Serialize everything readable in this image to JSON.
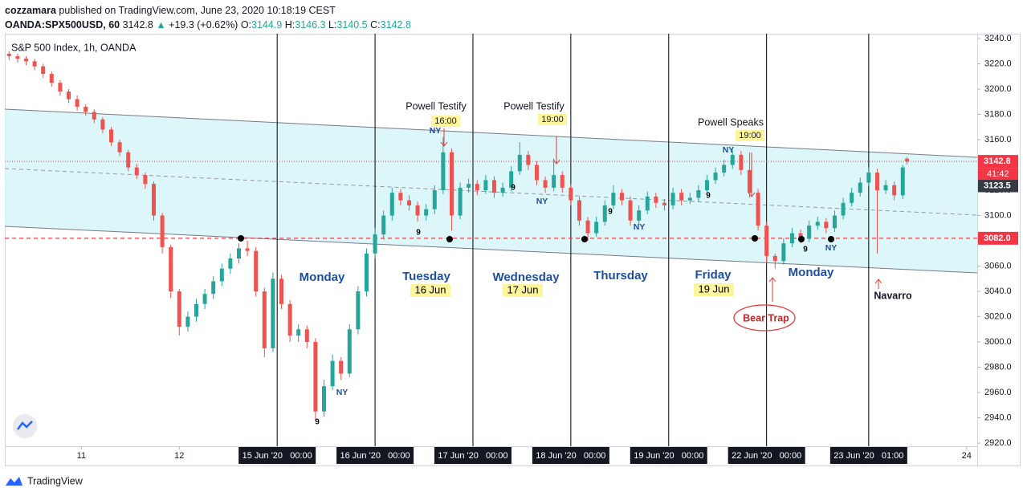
{
  "header": {
    "author": "cozzamara",
    "published": "published on TradingView.com, June 23, 2020 10:18:19 CEST",
    "symbol": "OANDA:SPX500USD, 60",
    "last": "3142.8",
    "change": "+19.3 (+0.62%)",
    "ohlc": [
      {
        "label": "O:",
        "value": "3144.9"
      },
      {
        "label": "H:",
        "value": "3146.3"
      },
      {
        "label": "L:",
        "value": "3140.5"
      },
      {
        "label": "C:",
        "value": "3142.8"
      }
    ]
  },
  "footer": {
    "brand": "TradingView"
  },
  "chart_data": {
    "type": "candlestick",
    "title": "S&P 500 Index, 1h, OANDA",
    "up_color": "#26a69a",
    "down_color": "#ef5350",
    "xlim": [
      -1,
      227.5
    ],
    "ylim": [
      2917.5,
      3243.8
    ],
    "xticks": [
      {
        "value": 17,
        "label": "11"
      },
      {
        "value": 40,
        "label": "12"
      },
      {
        "value": 63,
        "label": "15 Jun '20   00:00"
      },
      {
        "value": 86,
        "label": "16 Jun '20   00:00"
      },
      {
        "value": 109,
        "label": "17 Jun '20   00:00"
      },
      {
        "value": 132,
        "label": "18 Jun '20   00:00"
      },
      {
        "value": 155,
        "label": "19 Jun '20   00:00"
      },
      {
        "value": 178,
        "label": "22 Jun '20   00:00"
      },
      {
        "value": 202,
        "label": "23 Jun '20   01:00"
      },
      {
        "value": 225,
        "label": "24"
      }
    ],
    "yticks": [
      {
        "value": 2920,
        "label": "2920.0"
      },
      {
        "value": 2940,
        "label": "2940.0"
      },
      {
        "value": 2960,
        "label": "2960.0"
      },
      {
        "value": 2980,
        "label": "2980.0"
      },
      {
        "value": 3000,
        "label": "3000.0"
      },
      {
        "value": 3020,
        "label": "3020.0"
      },
      {
        "value": 3040,
        "label": "3040.0"
      },
      {
        "value": 3060,
        "label": "3060.0"
      },
      {
        "value": 3080,
        "label": "3080.0"
      },
      {
        "value": 3100,
        "label": "3100.0"
      },
      {
        "value": 3120,
        "label": "3120.0"
      },
      {
        "value": 3140,
        "label": "3140.0"
      },
      {
        "value": 3160,
        "label": "3160.0"
      },
      {
        "value": 3180,
        "label": "3180.0"
      },
      {
        "value": 3200,
        "label": "3200.0"
      },
      {
        "value": 3220,
        "label": "3220.0"
      },
      {
        "value": 3240,
        "label": "3240.0"
      }
    ],
    "price_lines": [
      {
        "value": 3142.8,
        "label": "3142.8",
        "color": "#f23645",
        "style": "dotted"
      },
      {
        "value": 3123.5,
        "label": "3123.5",
        "color": "#363a45",
        "style": "none"
      },
      {
        "value": 3082,
        "label": "3082.0",
        "color": "#f23645",
        "style": "dashed"
      }
    ],
    "countdown": "41:42",
    "x": [
      0,
      2,
      4,
      6,
      8,
      10,
      12,
      14,
      16,
      18,
      20,
      22,
      24,
      26,
      28,
      30,
      32,
      34,
      36,
      38,
      40,
      42,
      44,
      46,
      48,
      50,
      52,
      54,
      56,
      58,
      60,
      62,
      64,
      66,
      68,
      70,
      72,
      74,
      76,
      78,
      80,
      82,
      84,
      86,
      88,
      90,
      92,
      94,
      96,
      98,
      100,
      102,
      104,
      106,
      108,
      110,
      112,
      114,
      116,
      118,
      120,
      122,
      124,
      126,
      128,
      130,
      132,
      134,
      136,
      138,
      140,
      142,
      144,
      146,
      148,
      150,
      152,
      154,
      156,
      158,
      160,
      162,
      164,
      166,
      168,
      170,
      172,
      174,
      176,
      178,
      180,
      182,
      184,
      186,
      188,
      190,
      192,
      194,
      196,
      198,
      200,
      202,
      204,
      206,
      208,
      210,
      211
    ],
    "open": [
      3228,
      3226,
      3224,
      3222,
      3218,
      3212,
      3205,
      3198,
      3192,
      3186,
      3182,
      3176,
      3168,
      3158,
      3150,
      3138,
      3132,
      3125,
      3100,
      3075,
      3040,
      3012,
      3020,
      3030,
      3038,
      3048,
      3058,
      3066,
      3074,
      3072,
      3040,
      2995,
      3050,
      3030,
      3005,
      3010,
      3000,
      2945,
      2965,
      2985,
      2975,
      3010,
      3040,
      3070,
      3085,
      3100,
      3118,
      3112,
      3108,
      3100,
      3105,
      3120,
      3150,
      3100,
      3122,
      3125,
      3120,
      3128,
      3118,
      3122,
      3135,
      3148,
      3140,
      3128,
      3122,
      3132,
      3122,
      3112,
      3096,
      3086,
      3095,
      3108,
      3118,
      3112,
      3096,
      3104,
      3115,
      3110,
      3108,
      3118,
      3112,
      3114,
      3120,
      3128,
      3134,
      3140,
      3148,
      3136,
      3118,
      3092,
      3068,
      3064,
      3078,
      3086,
      3082,
      3092,
      3095,
      3090,
      3100,
      3110,
      3118,
      3126,
      3134,
      3120,
      3124,
      3116,
      3144.9
    ],
    "high": [
      3230,
      3228,
      3226,
      3224,
      3220,
      3214,
      3207,
      3200,
      3195,
      3188,
      3184,
      3178,
      3170,
      3160,
      3152,
      3141,
      3134,
      3127,
      3102,
      3077,
      3042,
      3024,
      3034,
      3042,
      3052,
      3062,
      3070,
      3078,
      3080,
      3075,
      3043,
      3055,
      3053,
      3033,
      3014,
      3013,
      3003,
      2970,
      2990,
      2988,
      3014,
      3044,
      3074,
      3090,
      3104,
      3122,
      3121,
      3116,
      3111,
      3109,
      3124,
      3162,
      3153,
      3126,
      3129,
      3128,
      3132,
      3131,
      3126,
      3139,
      3158,
      3151,
      3143,
      3131,
      3145,
      3135,
      3125,
      3115,
      3099,
      3099,
      3112,
      3124,
      3121,
      3115,
      3108,
      3119,
      3118,
      3113,
      3122,
      3121,
      3118,
      3124,
      3132,
      3138,
      3144,
      3152,
      3151,
      3150,
      3121,
      3095,
      3070,
      3082,
      3090,
      3089,
      3096,
      3099,
      3098,
      3104,
      3114,
      3122,
      3130,
      3138,
      3137,
      3128,
      3127,
      3140,
      3146.3
    ],
    "low": [
      3223,
      3221,
      3219,
      3215,
      3209,
      3202,
      3195,
      3189,
      3183,
      3179,
      3173,
      3165,
      3155,
      3147,
      3135,
      3129,
      3121,
      3096,
      3070,
      3035,
      3005,
      3008,
      3016,
      3026,
      3034,
      3044,
      3054,
      3062,
      3068,
      3036,
      2988,
      2992,
      3026,
      3000,
      3000,
      2995,
      2938,
      2941,
      2962,
      2970,
      2972,
      3006,
      3036,
      3066,
      3081,
      3096,
      3108,
      3104,
      3095,
      3096,
      3101,
      3117,
      3088,
      3097,
      3118,
      3116,
      3117,
      3114,
      3115,
      3119,
      3132,
      3136,
      3124,
      3118,
      3119,
      3118,
      3108,
      3092,
      3080,
      3083,
      3092,
      3105,
      3108,
      3092,
      3093,
      3101,
      3106,
      3104,
      3105,
      3108,
      3109,
      3111,
      3117,
      3125,
      3131,
      3137,
      3132,
      3114,
      3088,
      3062,
      3058,
      3061,
      3075,
      3078,
      3079,
      3089,
      3086,
      3087,
      3097,
      3107,
      3115,
      3123,
      3070,
      3117,
      3112,
      3113,
      3140.5
    ],
    "close": [
      3226,
      3224,
      3222,
      3218,
      3212,
      3205,
      3198,
      3192,
      3186,
      3182,
      3176,
      3168,
      3158,
      3150,
      3138,
      3132,
      3125,
      3100,
      3075,
      3040,
      3012,
      3020,
      3030,
      3038,
      3048,
      3058,
      3066,
      3074,
      3072,
      3040,
      2995,
      3050,
      3030,
      3005,
      3010,
      3000,
      2945,
      2965,
      2985,
      2975,
      3010,
      3040,
      3070,
      3085,
      3100,
      3118,
      3112,
      3108,
      3100,
      3105,
      3120,
      3150,
      3100,
      3122,
      3125,
      3120,
      3128,
      3118,
      3122,
      3135,
      3148,
      3140,
      3128,
      3122,
      3132,
      3122,
      3112,
      3096,
      3086,
      3095,
      3108,
      3118,
      3112,
      3096,
      3104,
      3115,
      3110,
      3108,
      3118,
      3112,
      3114,
      3120,
      3128,
      3134,
      3140,
      3148,
      3136,
      3118,
      3092,
      3068,
      3064,
      3078,
      3086,
      3082,
      3092,
      3095,
      3090,
      3100,
      3110,
      3118,
      3126,
      3134,
      3120,
      3124,
      3116,
      3138,
      3142.8
    ],
    "annotations": {
      "events": [
        {
          "label": "Powell Testify",
          "time": "16:00"
        },
        {
          "label": "Powell Testify",
          "time": "19:00"
        },
        {
          "label": "Powell Speaks",
          "time": "19:00"
        }
      ],
      "days": [
        {
          "name": "Monday"
        },
        {
          "name": "Tuesday",
          "date": "16 Jun"
        },
        {
          "name": "Wednesday",
          "date": "17 Jun"
        },
        {
          "name": "Thursday"
        },
        {
          "name": "Friday",
          "date": "19 Jun"
        },
        {
          "name": "Monday"
        }
      ],
      "ny": [
        "NY",
        "NY",
        "NY",
        "NY",
        "NY",
        "NY"
      ],
      "nine": [
        "9",
        "9",
        "9",
        "9",
        "9",
        "9"
      ],
      "bear_trap": "Bear Trap",
      "navarro": "Navarro"
    }
  }
}
